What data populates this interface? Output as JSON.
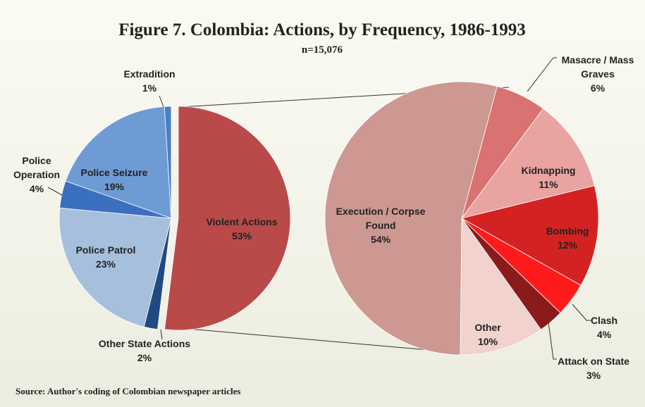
{
  "chart_data": [
    {
      "type": "pie",
      "title": "Figure 7.  Colombia: Actions, by Frequency, 1986-1993",
      "subtitle": "n=15,076",
      "source": "Source: Author's coding of Colombian newspaper articles",
      "categories": [
        "Violent Actions",
        "Other State Actions",
        "Police Patrol",
        "Police Operation",
        "Police Seizure",
        "Extradition"
      ],
      "values": [
        53,
        2,
        23,
        4,
        19,
        1
      ],
      "value_labels": [
        "53%",
        "2%",
        "23%",
        "4%",
        "19%",
        "1%"
      ],
      "colors": [
        "#b94a49",
        "#1f4b82",
        "#a6bfdd",
        "#3b6fc0",
        "#6f9bd5",
        "#4a80c8"
      ]
    },
    {
      "type": "pie",
      "categories": [
        "Masacre / Mass Graves",
        "Kidnapping",
        "Bombing",
        "Clash",
        "Attack on State",
        "Other",
        "Execution / Corpse Found"
      ],
      "values": [
        6,
        11,
        12,
        4,
        3,
        10,
        54
      ],
      "value_labels": [
        "6%",
        "11%",
        "12%",
        "4%",
        "3%",
        "10%",
        "54%"
      ],
      "colors": [
        "#d97271",
        "#e9a3a1",
        "#d42222",
        "#ff1b1b",
        "#8b1b1b",
        "#f1d2cd",
        "#cd9892"
      ]
    }
  ]
}
